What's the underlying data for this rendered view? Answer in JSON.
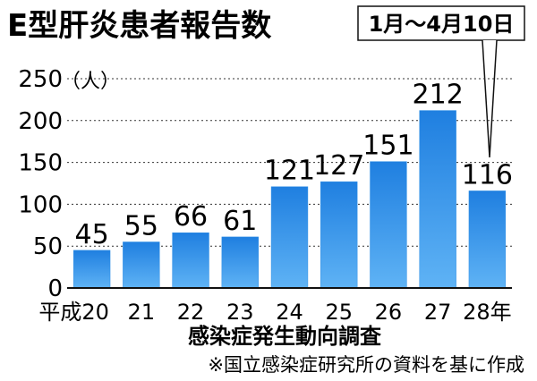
{
  "chart_data": {
    "type": "bar",
    "title": "E型肝炎患者報告数",
    "unit": "（人）",
    "callout": "1月～4月10日",
    "categories": [
      "平成20",
      "21",
      "22",
      "23",
      "24",
      "25",
      "26",
      "27",
      "28年"
    ],
    "values": [
      45,
      55,
      66,
      61,
      121,
      127,
      151,
      212,
      116
    ],
    "yticks": [
      0,
      50,
      100,
      150,
      200,
      250
    ],
    "ylim": [
      0,
      250
    ],
    "xlabel": "感染症発生動向調査",
    "ylabel": "",
    "source": "※国立感染症研究所の資料を基に作成",
    "grid": true,
    "bar_color": "#2f8fe6"
  }
}
